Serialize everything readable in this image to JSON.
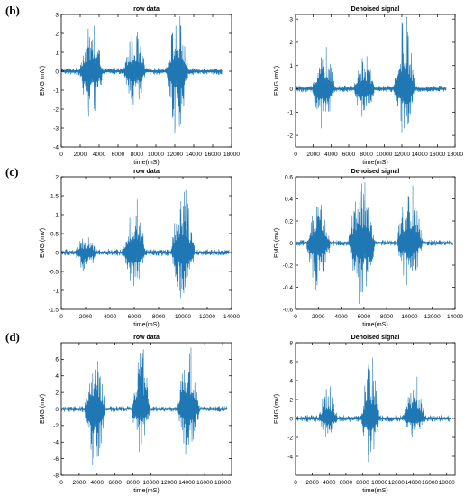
{
  "panel_labels": [
    "(b)",
    "(c)",
    "(d)"
  ],
  "chart_data": [
    {
      "type": "line",
      "title": "row data",
      "xlabel": "time(mS)",
      "ylabel": "EMG (mV)",
      "xlim": [
        0,
        18000
      ],
      "ylim": [
        -4,
        3
      ],
      "xticks": [
        0,
        2000,
        4000,
        6000,
        8000,
        10000,
        12000,
        14000,
        16000,
        18000
      ],
      "yticks": [
        -4,
        -3,
        -2,
        -1,
        0,
        1,
        2,
        3
      ],
      "color": "#1f77b4",
      "signal_span": [
        0,
        17000
      ],
      "bursts": [
        {
          "start": 1800,
          "end": 4500,
          "max": 2.4,
          "min": -2.4
        },
        {
          "start": 6500,
          "end": 9000,
          "max": 2.1,
          "min": -2.1
        },
        {
          "start": 11000,
          "end": 13500,
          "max": 2.9,
          "min": -3.3
        }
      ]
    },
    {
      "type": "line",
      "title": "Denoised signal",
      "xlabel": "time(mS)",
      "ylabel": "EMG (mV)",
      "xlim": [
        0,
        18000
      ],
      "ylim": [
        -2.5,
        3.2
      ],
      "xticks": [
        0,
        2000,
        4000,
        6000,
        8000,
        10000,
        12000,
        14000,
        16000,
        18000
      ],
      "yticks": [
        -2,
        -1,
        0,
        1,
        2,
        3
      ],
      "color": "#1f77b4",
      "signal_span": [
        0,
        17000
      ],
      "bursts": [
        {
          "start": 1800,
          "end": 4500,
          "max": 1.8,
          "min": -1.7
        },
        {
          "start": 6500,
          "end": 9000,
          "max": 1.4,
          "min": -1.2
        },
        {
          "start": 11000,
          "end": 13500,
          "max": 3.1,
          "min": -1.9
        }
      ]
    },
    {
      "type": "line",
      "title": "row data",
      "xlabel": "time(mS)",
      "ylabel": "EMG (mV)",
      "xlim": [
        0,
        14000
      ],
      "ylim": [
        -1.5,
        2
      ],
      "xticks": [
        0,
        2000,
        4000,
        6000,
        8000,
        10000,
        12000,
        14000
      ],
      "yticks": [
        -1.5,
        -1,
        -0.5,
        0,
        0.5,
        1,
        1.5,
        2
      ],
      "color": "#1f77b4",
      "signal_span": [
        0,
        13800
      ],
      "bursts": [
        {
          "start": 1000,
          "end": 3000,
          "max": 0.4,
          "min": -0.5
        },
        {
          "start": 5000,
          "end": 7000,
          "max": 1.4,
          "min": -0.9
        },
        {
          "start": 9000,
          "end": 11000,
          "max": 1.65,
          "min": -1.2
        }
      ]
    },
    {
      "type": "line",
      "title": "Denoised signal",
      "xlabel": "time(mS)",
      "ylabel": "EMG (mV)",
      "xlim": [
        0,
        14000
      ],
      "ylim": [
        -0.6,
        0.6
      ],
      "xticks": [
        0,
        2000,
        4000,
        6000,
        8000,
        10000,
        12000,
        14000
      ],
      "yticks": [
        -0.6,
        -0.4,
        -0.2,
        0,
        0.2,
        0.4,
        0.6
      ],
      "color": "#1f77b4",
      "signal_span": [
        0,
        13800
      ],
      "bursts": [
        {
          "start": 900,
          "end": 3100,
          "max": 0.35,
          "min": -0.43
        },
        {
          "start": 4600,
          "end": 7000,
          "max": 0.55,
          "min": -0.55
        },
        {
          "start": 8800,
          "end": 11200,
          "max": 0.52,
          "min": -0.38
        }
      ]
    },
    {
      "type": "line",
      "title": "row data",
      "xlabel": "time(mS)",
      "ylabel": "EMG (mV)",
      "xlim": [
        0,
        19000
      ],
      "ylim": [
        -8,
        8
      ],
      "xticks": [
        0,
        2000,
        4000,
        6000,
        8000,
        10000,
        12000,
        14000,
        16000,
        18000
      ],
      "yticks": [
        -8,
        -6,
        -4,
        -2,
        0,
        2,
        4,
        6
      ],
      "color": "#1f77b4",
      "signal_span": [
        0,
        18500
      ],
      "bursts": [
        {
          "start": 2500,
          "end": 5000,
          "max": 5.8,
          "min": -6.8
        },
        {
          "start": 7800,
          "end": 10000,
          "max": 7.2,
          "min": -5.2
        },
        {
          "start": 12800,
          "end": 15500,
          "max": 7.4,
          "min": -5.4
        }
      ]
    },
    {
      "type": "line",
      "title": "Denoised signal",
      "xlabel": "time(mS)",
      "ylabel": "EMG (mV)",
      "xlim": [
        0,
        19000
      ],
      "ylim": [
        -6,
        8
      ],
      "xticks": [
        0,
        2000,
        4000,
        6000,
        8000,
        10000,
        12000,
        14000,
        16000,
        18000
      ],
      "yticks": [
        -4,
        -2,
        0,
        2,
        4,
        6,
        8
      ],
      "color": "#1f77b4",
      "signal_span": [
        0,
        18500
      ],
      "bursts": [
        {
          "start": 2700,
          "end": 5000,
          "max": 3.4,
          "min": -2.0
        },
        {
          "start": 7800,
          "end": 10000,
          "max": 6.4,
          "min": -4.6
        },
        {
          "start": 12800,
          "end": 15500,
          "max": 4.4,
          "min": -2.0
        }
      ]
    }
  ]
}
